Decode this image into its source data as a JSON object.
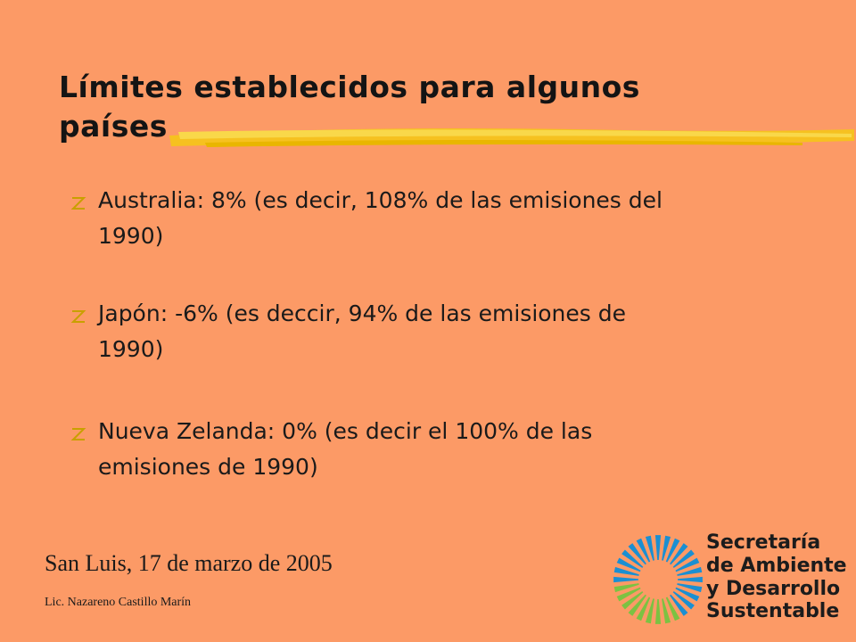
{
  "title": [
    "Límites establecidos para algunos",
    "países"
  ],
  "bullets": [
    [
      "Australia: 8% (es decir, 108% de las emisiones del",
      "1990)"
    ],
    [
      "Japón: -6% (es deccir, 94% de las emisiones de",
      "1990)"
    ],
    [
      "Nueva Zelanda: 0% (es decir el 100% de las",
      "emisiones de 1990)"
    ]
  ],
  "footer": {
    "date": "San Luis, 17 de marzo de 2005",
    "author": "Lic. Nazareno Castillo Marín"
  },
  "logo": {
    "lines": [
      "Secretaría",
      "de Ambiente",
      "y Desarrollo",
      "Sustentable"
    ]
  }
}
